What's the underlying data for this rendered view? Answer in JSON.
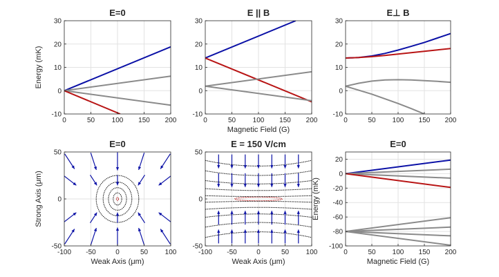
{
  "figure": {
    "background": "#ffffff"
  },
  "colors": {
    "blue": "#0a10a6",
    "red": "#b81414",
    "gray": "#8a8a8a",
    "black": "#111111",
    "grid": "#e2e2e2",
    "axis": "#262626"
  },
  "chart_data": [
    {
      "id": "p1",
      "type": "line",
      "title": "E=0",
      "xlabel": "",
      "ylabel": "Energy (mK)",
      "xlim": [
        0,
        200
      ],
      "ylim": [
        -10,
        30
      ],
      "xticks": [
        0,
        50,
        100,
        150,
        200
      ],
      "yticks": [
        -10,
        0,
        10,
        20,
        30
      ],
      "grid": true,
      "series": [
        {
          "color": "blue",
          "x": [
            0,
            200
          ],
          "y": [
            0,
            18.8
          ]
        },
        {
          "color": "gray",
          "x": [
            0,
            200
          ],
          "y": [
            0,
            6.2
          ]
        },
        {
          "color": "gray",
          "x": [
            0,
            200
          ],
          "y": [
            0,
            -6.2
          ]
        },
        {
          "color": "red",
          "x": [
            0,
            105
          ],
          "y": [
            0,
            -10
          ]
        }
      ]
    },
    {
      "id": "p2",
      "type": "line",
      "title": "E || B",
      "xlabel": "Magnetic Field (G)",
      "ylabel": "",
      "xlim": [
        0,
        200
      ],
      "ylim": [
        -10,
        30
      ],
      "xticks": [
        0,
        50,
        100,
        150,
        200
      ],
      "yticks": [
        -10,
        0,
        10,
        20,
        30
      ],
      "grid": true,
      "series": [
        {
          "color": "blue",
          "x": [
            0,
            170
          ],
          "y": [
            14,
            30
          ]
        },
        {
          "color": "red",
          "x": [
            0,
            200
          ],
          "y": [
            14,
            -4.8
          ]
        },
        {
          "color": "gray",
          "x": [
            0,
            200
          ],
          "y": [
            1.9,
            8.1
          ]
        },
        {
          "color": "gray",
          "x": [
            0,
            200
          ],
          "y": [
            1.9,
            -4.3
          ]
        }
      ]
    },
    {
      "id": "p3",
      "type": "line",
      "title": "E⊥ B",
      "xlabel": "",
      "ylabel": "",
      "xlim": [
        0,
        200
      ],
      "ylim": [
        -10,
        30
      ],
      "xticks": [
        0,
        50,
        100,
        150,
        200
      ],
      "yticks": [
        -10,
        0,
        10,
        20,
        30
      ],
      "grid": true,
      "series": [
        {
          "color": "blue",
          "x": [
            0,
            25,
            50,
            75,
            100,
            125,
            150,
            175,
            200
          ],
          "y": [
            14,
            14.2,
            14.9,
            16.0,
            17.4,
            19.0,
            20.7,
            22.6,
            24.5
          ]
        },
        {
          "color": "red",
          "x": [
            0,
            25,
            50,
            75,
            100,
            125,
            150,
            175,
            200
          ],
          "y": [
            14,
            14.2,
            14.6,
            15.1,
            15.7,
            16.3,
            16.9,
            17.5,
            18.1
          ]
        },
        {
          "color": "gray",
          "x": [
            0,
            25,
            50,
            75,
            100,
            125,
            150,
            175,
            200
          ],
          "y": [
            1.9,
            3.2,
            4.1,
            4.6,
            4.7,
            4.6,
            4.3,
            4.0,
            3.6
          ]
        },
        {
          "color": "gray",
          "x": [
            0,
            25,
            50,
            75,
            100,
            125,
            150
          ],
          "y": [
            1.9,
            0.2,
            -1.5,
            -3.5,
            -5.5,
            -7.7,
            -10
          ]
        }
      ]
    },
    {
      "id": "p4",
      "type": "contour",
      "title": "E=0",
      "xlabel": "Weak Axis (μm)",
      "ylabel": "Strong Axis (μm)",
      "xlim": [
        -100,
        100
      ],
      "ylim": [
        -50,
        50
      ],
      "xticks": [
        -100,
        -50,
        0,
        50,
        100
      ],
      "yticks": [
        -50,
        0,
        50
      ],
      "grid": true,
      "contours": [
        {
          "color": "red",
          "rx": 2,
          "ry": 1.7
        },
        {
          "color": "black",
          "rx": 8,
          "ry": 6.5
        },
        {
          "color": "black",
          "rx": 17,
          "ry": 12
        },
        {
          "color": "black",
          "rx": 27,
          "ry": 18
        },
        {
          "color": "black",
          "rx": 40,
          "ry": 25
        }
      ],
      "arrows_grid": {
        "x": [
          -90,
          -45,
          0,
          45,
          90
        ],
        "y": [
          -40,
          -20,
          20,
          40
        ]
      },
      "arrow_style": "radial-inward"
    },
    {
      "id": "p5",
      "type": "contour",
      "title": "E = 150 V/cm",
      "xlabel": "Weak Axis (μm)",
      "ylabel": "",
      "xlim": [
        -100,
        100
      ],
      "ylim": [
        -50,
        50
      ],
      "xticks": [
        -100,
        -50,
        0,
        50,
        100
      ],
      "yticks": [
        -50,
        0,
        50
      ],
      "grid": true,
      "ellipse": {
        "color": "red",
        "rx": 45,
        "ry": 2
      },
      "bands": [
        {
          "y0": 2.5,
          "a": 1.0
        },
        {
          "y0": 9,
          "a": 2.0
        },
        {
          "y0": 16,
          "a": 3.5
        },
        {
          "y0": 25,
          "a": 5.0
        },
        {
          "y0": 35,
          "a": 6.0
        }
      ],
      "arrows_grid": {
        "x": [
          -75,
          -50,
          -25,
          0,
          25,
          50,
          75
        ],
        "y": [
          -40,
          -20,
          20,
          40
        ]
      },
      "arrow_style": "vertical-inward"
    },
    {
      "id": "p6",
      "type": "line",
      "title": "E=0",
      "xlabel": "Magnetic Field (G)",
      "ylabel": "Energy (mK)",
      "xlim": [
        0,
        200
      ],
      "ylim": [
        -100,
        30
      ],
      "xticks": [
        0,
        50,
        100,
        150,
        200
      ],
      "yticks": [
        -100,
        -80,
        -60,
        -40,
        -20,
        0,
        20
      ],
      "grid": true,
      "series": [
        {
          "color": "blue",
          "x": [
            0,
            200
          ],
          "y": [
            0,
            18.8
          ]
        },
        {
          "color": "gray",
          "x": [
            0,
            200
          ],
          "y": [
            0,
            6.2
          ]
        },
        {
          "color": "gray",
          "x": [
            0,
            200
          ],
          "y": [
            0,
            -6.2
          ]
        },
        {
          "color": "red",
          "x": [
            0,
            200
          ],
          "y": [
            0,
            -19
          ]
        },
        {
          "color": "gray",
          "x": [
            0,
            200
          ],
          "y": [
            -80,
            -61
          ]
        },
        {
          "color": "gray",
          "x": [
            0,
            200
          ],
          "y": [
            -80,
            -74
          ]
        },
        {
          "color": "gray",
          "x": [
            0,
            200
          ],
          "y": [
            -80,
            -86
          ]
        },
        {
          "color": "gray",
          "x": [
            0,
            200
          ],
          "y": [
            -80,
            -99
          ]
        }
      ]
    }
  ]
}
